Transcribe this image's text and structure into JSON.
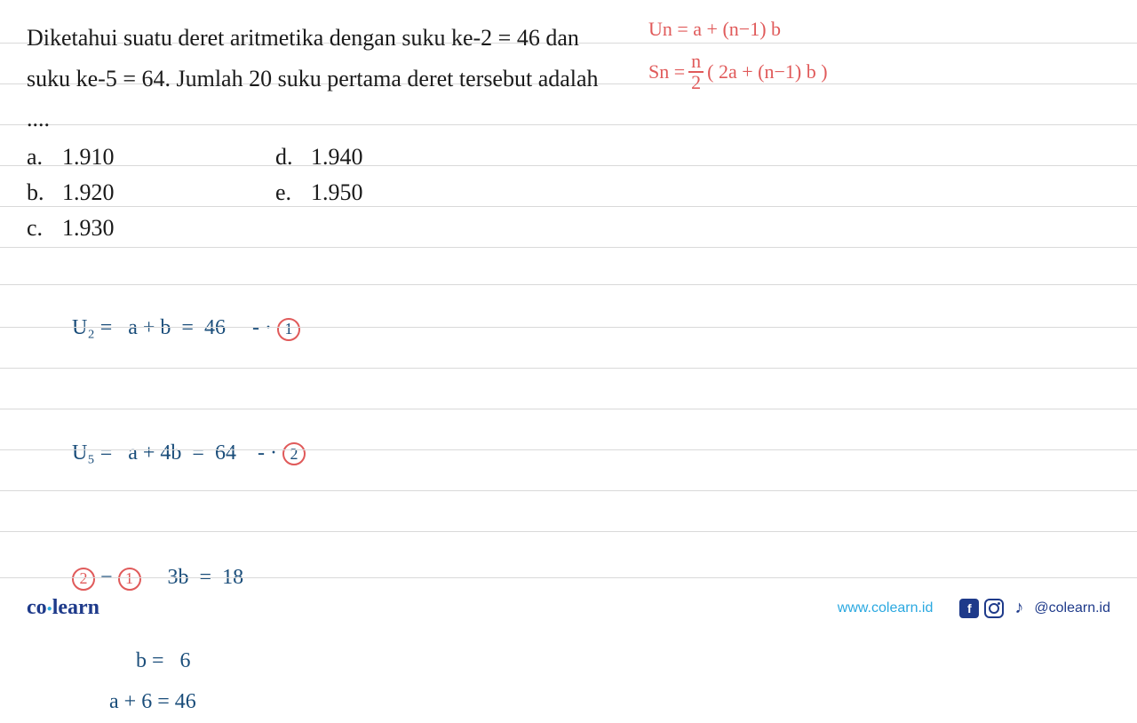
{
  "colors": {
    "text_primary": "#1a1a1a",
    "handwritten_red": "#e05a5a",
    "handwritten_blue": "#1a4d7a",
    "rule_line": "#d9d9d9",
    "brand_blue": "#1e3a8a",
    "brand_light": "#2aa8e0",
    "background": "#ffffff"
  },
  "typography": {
    "question_fontsize": 26,
    "handwritten_fontsize": 24,
    "question_family": "Georgia, serif",
    "handwritten_family": "Comic Sans MS, cursive"
  },
  "ruled_lines_y": [
    48,
    94,
    140,
    186,
    232,
    278,
    320,
    368,
    414,
    460,
    506,
    552,
    598,
    650
  ],
  "question": {
    "text": "Diketahui suatu deret aritmetika dengan suku ke-2 = 46 dan suku ke-5 = 64. Jumlah 20 suku pertama deret tersebut adalah ....",
    "options": [
      {
        "letter": "a.",
        "value": "1.910"
      },
      {
        "letter": "b.",
        "value": "1.920"
      },
      {
        "letter": "c.",
        "value": "1.930"
      },
      {
        "letter": "d.",
        "value": "1.940"
      },
      {
        "letter": "e.",
        "value": "1.950"
      }
    ]
  },
  "formulas": {
    "un": "Un =  a + (n−1) b",
    "sn_prefix": "Sn = ",
    "sn_frac_num": "n",
    "sn_frac_den": "2",
    "sn_suffix": "( 2a + (n−1) b )"
  },
  "work": {
    "line1": "U₂ =   a + b  =  46     - · ",
    "circ1": "1",
    "line2": "U₅ =   a + 4b  =  64    - · ",
    "circ2": "2",
    "line3_left_a": "2",
    "line3_left_mid": " − ",
    "line3_left_b": "1",
    "line3_right": "     3b  =  18",
    "line4": "                  b =   6",
    "line5": "             a + 6 = 46"
  },
  "footer": {
    "logo_co": "co",
    "logo_learn": "learn",
    "url": "www.colearn.id",
    "handle": "@colearn.id",
    "fb_letter": "f"
  }
}
